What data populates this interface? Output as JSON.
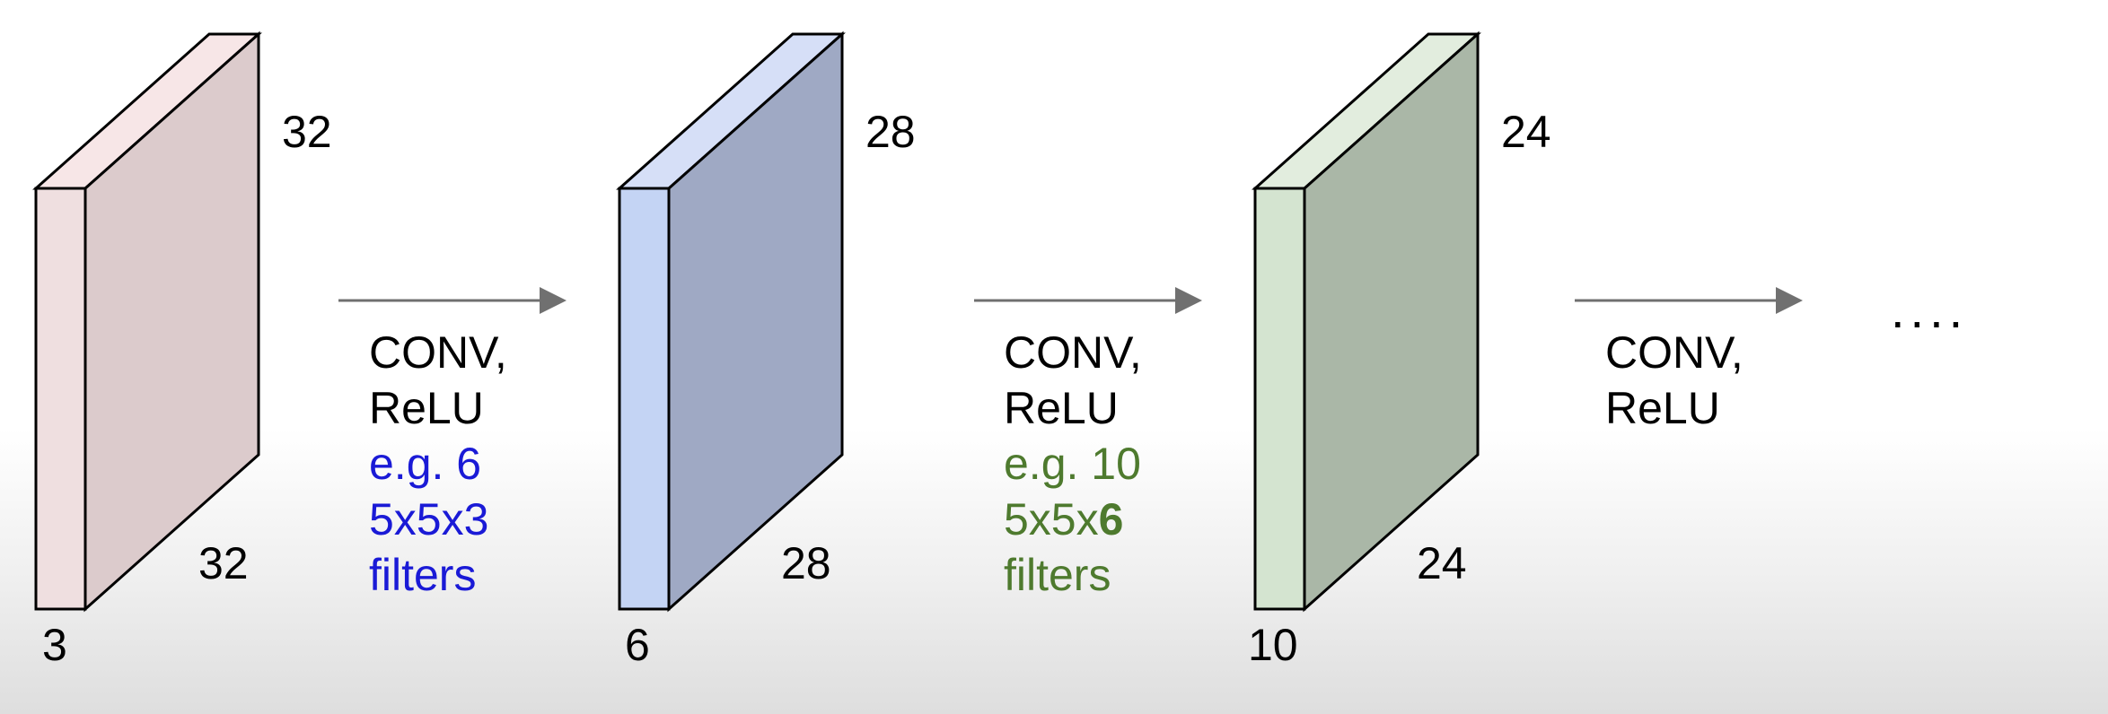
{
  "colors": {
    "volume1_front": "#efdfe0",
    "volume1_side": "#dccbcc",
    "volume1_top": "#f7e6e7",
    "volume2_front": "#c4d4f4",
    "volume2_side": "#9fa9c4",
    "volume2_top": "#d6dff7",
    "volume3_front": "#d4e4d0",
    "volume3_side": "#aab7a7",
    "volume3_top": "#e2edde",
    "arrow": "#707070",
    "filters1_text": "#1a1ad6",
    "filters2_text": "#4e7a2e"
  },
  "volumes": [
    {
      "height": "32",
      "width": "32",
      "depth": "3"
    },
    {
      "height": "28",
      "width": "28",
      "depth": "6"
    },
    {
      "height": "24",
      "width": "24",
      "depth": "10"
    }
  ],
  "steps": [
    {
      "line1": "CONV,",
      "line2": "ReLU",
      "filter_count": "e.g. 6",
      "filter_shape": "5x5x3",
      "filter_word": "filters"
    },
    {
      "line1": "CONV,",
      "line2": "ReLU",
      "filter_count": "e.g. 10",
      "filter_shape_prefix": "5x5x",
      "filter_shape_bold": "6",
      "filter_word": "filters"
    },
    {
      "line1": "CONV,",
      "line2": "ReLU"
    }
  ],
  "ellipsis": "...."
}
